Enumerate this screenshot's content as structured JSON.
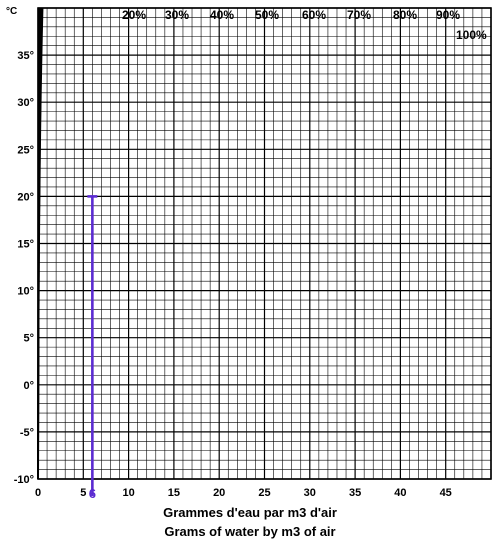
{
  "chart_data": {
    "type": "line",
    "title": "",
    "y_unit": "°C",
    "xlabel_lines": [
      "Grammes d'eau par m3 d'air",
      "Grams of water by m3 of air"
    ],
    "xlim": [
      0,
      50
    ],
    "ylim": [
      -10,
      40
    ],
    "x_ticks": [
      0,
      5,
      10,
      15,
      20,
      25,
      30,
      35,
      40,
      45
    ],
    "x_tick_labels": [
      "0",
      "5",
      "10",
      "15",
      "20",
      "25",
      "30",
      "35",
      "40",
      "45"
    ],
    "y_ticks": [
      -10,
      -5,
      0,
      5,
      10,
      15,
      20,
      25,
      30,
      35
    ],
    "y_tick_labels": [
      "-10°",
      "-5°",
      "0°",
      "5°",
      "10°",
      "15°",
      "20°",
      "25°",
      "30°",
      "35°"
    ],
    "grid": true,
    "curve_labels": [
      "20%",
      "30%",
      "40%",
      "50%",
      "60%",
      "70%",
      "80%",
      "90%",
      "100%"
    ],
    "series": [
      {
        "name": "20%",
        "humidity": 0.2
      },
      {
        "name": "30%",
        "humidity": 0.3
      },
      {
        "name": "40%",
        "humidity": 0.4
      },
      {
        "name": "50%",
        "humidity": 0.5
      },
      {
        "name": "60%",
        "humidity": 0.6
      },
      {
        "name": "70%",
        "humidity": 0.7
      },
      {
        "name": "80%",
        "humidity": 0.8
      },
      {
        "name": "90%",
        "humidity": 0.9
      },
      {
        "name": "100%",
        "humidity": 1.0
      }
    ],
    "annotation": {
      "x": 6,
      "y_top": 20,
      "label": "6",
      "color": "#5b2bd1"
    }
  }
}
